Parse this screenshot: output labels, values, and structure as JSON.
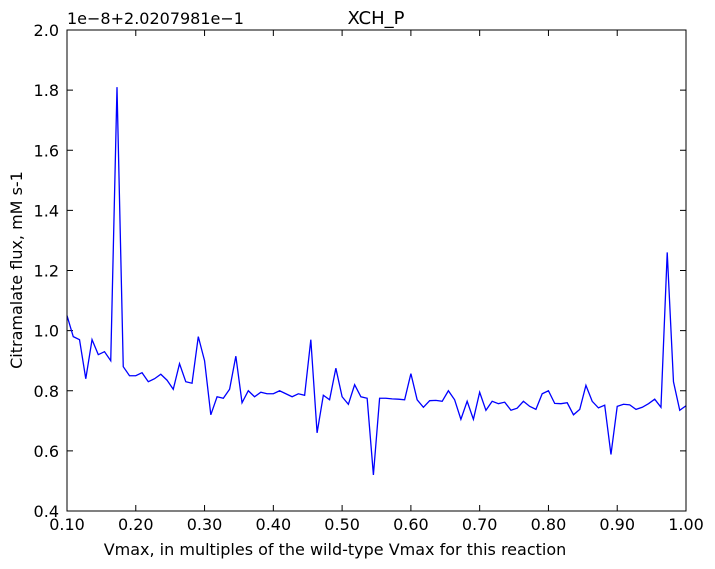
{
  "chart_data": {
    "type": "line",
    "title": "XCH_P",
    "offset_label": "1e−8+2.0207981e−1",
    "xlabel": "Vmax, in multiples of the wild-type Vmax for this reaction",
    "ylabel": "Citramalate flux, mM s-1",
    "x": [
      0.1,
      0.1091,
      0.1182,
      0.1273,
      0.1364,
      0.1455,
      0.1545,
      0.1636,
      0.1727,
      0.1818,
      0.1909,
      0.2,
      0.2091,
      0.2182,
      0.2273,
      0.2364,
      0.2455,
      0.2545,
      0.2636,
      0.2727,
      0.2818,
      0.2909,
      0.3,
      0.3091,
      0.3182,
      0.3273,
      0.3364,
      0.3455,
      0.3545,
      0.3636,
      0.3727,
      0.3818,
      0.3909,
      0.4,
      0.4091,
      0.4182,
      0.4273,
      0.4364,
      0.4455,
      0.4545,
      0.4636,
      0.4727,
      0.4818,
      0.4909,
      0.5,
      0.5091,
      0.5182,
      0.5273,
      0.5364,
      0.5455,
      0.5545,
      0.5636,
      0.5727,
      0.5818,
      0.5909,
      0.6,
      0.6091,
      0.6182,
      0.6273,
      0.6364,
      0.6455,
      0.6545,
      0.6636,
      0.6727,
      0.6818,
      0.6909,
      0.7,
      0.7091,
      0.7182,
      0.7273,
      0.7364,
      0.7455,
      0.7545,
      0.7636,
      0.7727,
      0.7818,
      0.7909,
      0.8,
      0.8091,
      0.8182,
      0.8273,
      0.8364,
      0.8455,
      0.8545,
      0.8636,
      0.8727,
      0.8818,
      0.8909,
      0.9,
      0.9091,
      0.9182,
      0.9273,
      0.9364,
      0.9455,
      0.9545,
      0.9636,
      0.9727,
      0.9818,
      0.9909,
      1.0
    ],
    "series": [
      {
        "color": "#0000ff",
        "values": [
          1.05,
          0.98,
          0.97,
          0.84,
          0.97,
          0.92,
          0.93,
          0.9,
          1.81,
          0.88,
          0.85,
          0.85,
          0.86,
          0.83,
          0.84,
          0.855,
          0.835,
          0.805,
          0.89,
          0.83,
          0.825,
          0.98,
          0.9,
          0.72,
          0.78,
          0.775,
          0.805,
          0.915,
          0.76,
          0.8,
          0.78,
          0.795,
          0.79,
          0.79,
          0.8,
          0.79,
          0.78,
          0.79,
          0.785,
          0.97,
          0.66,
          0.785,
          0.77,
          0.875,
          0.78,
          0.755,
          0.82,
          0.78,
          0.775,
          0.52,
          0.775,
          0.775,
          0.773,
          0.772,
          0.77,
          0.857,
          0.77,
          0.745,
          0.767,
          0.768,
          0.765,
          0.8,
          0.77,
          0.705,
          0.765,
          0.705,
          0.795,
          0.735,
          0.765,
          0.757,
          0.762,
          0.735,
          0.742,
          0.765,
          0.748,
          0.738,
          0.79,
          0.8,
          0.758,
          0.757,
          0.76,
          0.72,
          0.738,
          0.818,
          0.765,
          0.743,
          0.752,
          0.588,
          0.748,
          0.755,
          0.753,
          0.738,
          0.745,
          0.757,
          0.772,
          0.745,
          1.26,
          0.83,
          0.735,
          0.75
        ]
      }
    ],
    "xlim": [
      0.1,
      1.0
    ],
    "xticks": [
      {
        "value": 0.1,
        "label": "0.10"
      },
      {
        "value": 0.2,
        "label": "0.20"
      },
      {
        "value": 0.3,
        "label": "0.30"
      },
      {
        "value": 0.4,
        "label": "0.40"
      },
      {
        "value": 0.5,
        "label": "0.50"
      },
      {
        "value": 0.6,
        "label": "0.60"
      },
      {
        "value": 0.7,
        "label": "0.70"
      },
      {
        "value": 0.8,
        "label": "0.80"
      },
      {
        "value": 0.9,
        "label": "0.90"
      },
      {
        "value": 1.0,
        "label": "1.00"
      }
    ],
    "ylim": [
      0.4,
      2.0
    ],
    "yticks": [
      0.4,
      0.6,
      0.8,
      {
        "value": 1.0,
        "label": "1.0"
      },
      1.2,
      1.4,
      1.6,
      1.8,
      {
        "value": 2.0,
        "label": "2.0"
      }
    ],
    "grid": false
  }
}
